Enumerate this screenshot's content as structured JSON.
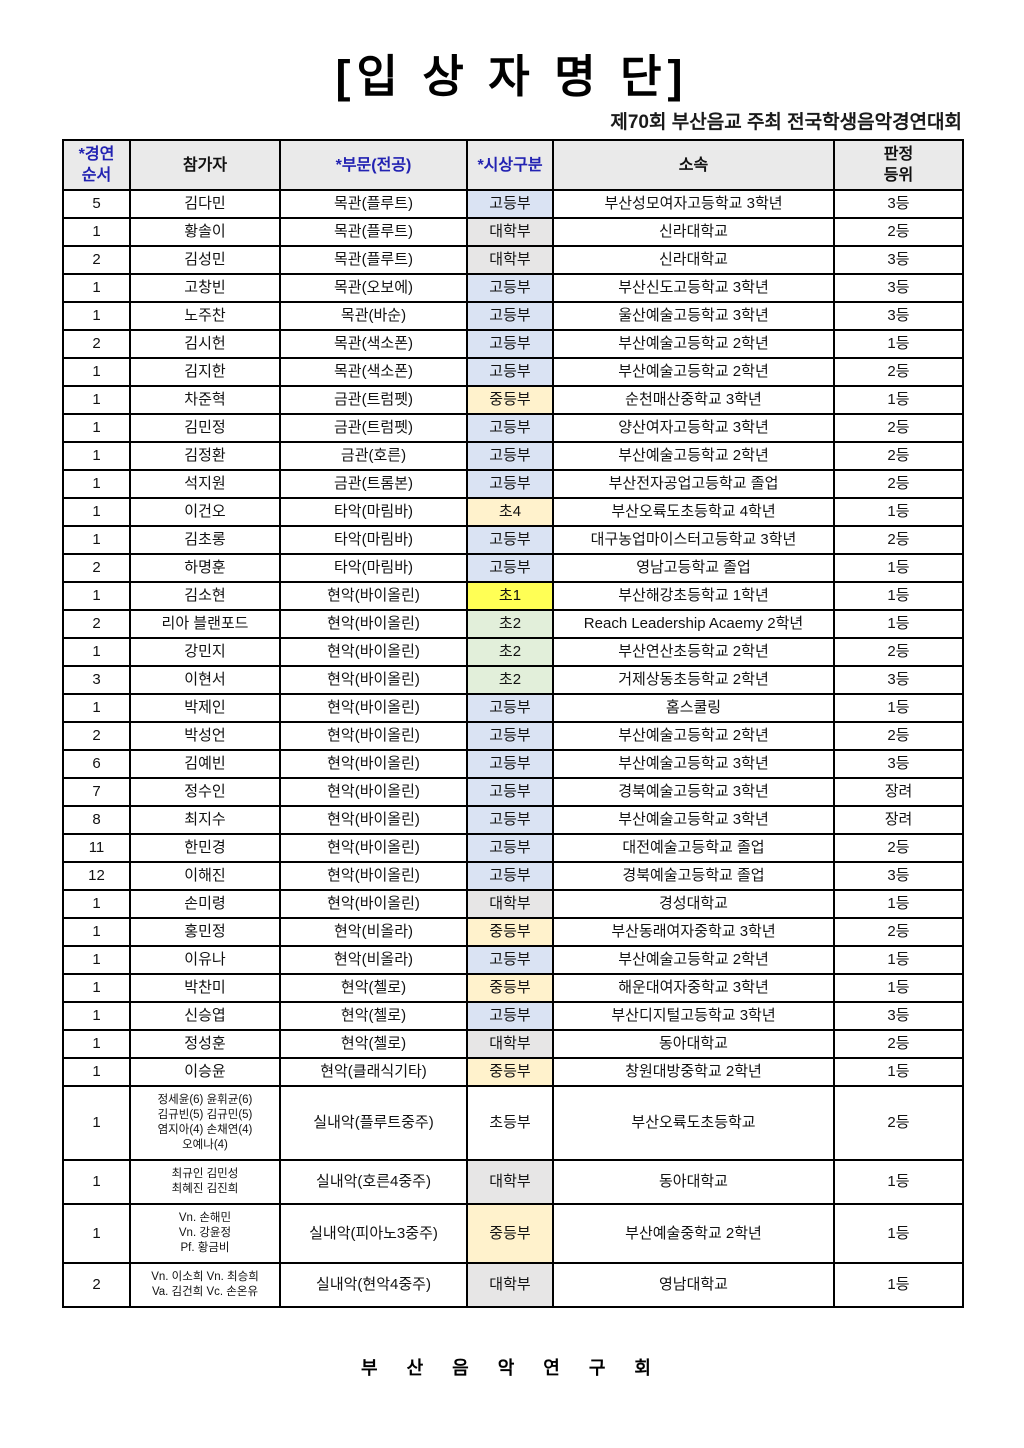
{
  "page": {
    "title": "[입 상 자 명 단]",
    "subtitle": "제70회 부산음교 주최 전국학생음악경연대회",
    "footer": "부 산 음 악 연 구 회"
  },
  "colors": {
    "header_bg": "#eaeaea",
    "header_accent_text": "#2222b2",
    "border": "#000000"
  },
  "category_colors": {
    "고등부": "#dae3f3",
    "대학부": "#e7e6e6",
    "중등부": "#fff2cc",
    "초4": "#fff2cc",
    "초1": "#ffff55",
    "초2": "#e2efda",
    "초등부": ""
  },
  "table": {
    "headers": [
      {
        "lines": [
          "*경연",
          "순서"
        ],
        "blue": true
      },
      {
        "lines": [
          "참가자"
        ],
        "blue": false
      },
      {
        "lines": [
          "*부문(전공)"
        ],
        "blue": true
      },
      {
        "lines": [
          "*시상구분"
        ],
        "blue": true
      },
      {
        "lines": [
          "소속"
        ],
        "blue": false
      },
      {
        "lines": [
          "판정",
          "등위"
        ],
        "blue": false
      }
    ],
    "rows": [
      {
        "order": "5",
        "participant": [
          "김다민"
        ],
        "division": "목관(플루트)",
        "category": "고등부",
        "affiliation": "부산성모여자고등학교 3학년",
        "rank": "3등",
        "small": false
      },
      {
        "order": "1",
        "participant": [
          "황솔이"
        ],
        "division": "목관(플루트)",
        "category": "대학부",
        "affiliation": "신라대학교",
        "rank": "2등",
        "small": false
      },
      {
        "order": "2",
        "participant": [
          "김성민"
        ],
        "division": "목관(플루트)",
        "category": "대학부",
        "affiliation": "신라대학교",
        "rank": "3등",
        "small": false
      },
      {
        "order": "1",
        "participant": [
          "고창빈"
        ],
        "division": "목관(오보에)",
        "category": "고등부",
        "affiliation": "부산신도고등학교 3학년",
        "rank": "3등",
        "small": false
      },
      {
        "order": "1",
        "participant": [
          "노주찬"
        ],
        "division": "목관(바순)",
        "category": "고등부",
        "affiliation": "울산예술고등학교 3학년",
        "rank": "3등",
        "small": false
      },
      {
        "order": "2",
        "participant": [
          "김시헌"
        ],
        "division": "목관(색소폰)",
        "category": "고등부",
        "affiliation": "부산예술고등학교 2학년",
        "rank": "1등",
        "small": false
      },
      {
        "order": "1",
        "participant": [
          "김지한"
        ],
        "division": "목관(색소폰)",
        "category": "고등부",
        "affiliation": "부산예술고등학교 2학년",
        "rank": "2등",
        "small": false
      },
      {
        "order": "1",
        "participant": [
          "차준혁"
        ],
        "division": "금관(트럼펫)",
        "category": "중등부",
        "affiliation": "순천매산중학교 3학년",
        "rank": "1등",
        "small": false
      },
      {
        "order": "1",
        "participant": [
          "김민정"
        ],
        "division": "금관(트럼펫)",
        "category": "고등부",
        "affiliation": "양산여자고등학교 3학년",
        "rank": "2등",
        "small": false
      },
      {
        "order": "1",
        "participant": [
          "김정환"
        ],
        "division": "금관(호른)",
        "category": "고등부",
        "affiliation": "부산예술고등학교 2학년",
        "rank": "2등",
        "small": false
      },
      {
        "order": "1",
        "participant": [
          "석지원"
        ],
        "division": "금관(트롬본)",
        "category": "고등부",
        "affiliation": "부산전자공업고등학교 졸업",
        "rank": "2등",
        "small": false
      },
      {
        "order": "1",
        "participant": [
          "이건오"
        ],
        "division": "타악(마림바)",
        "category": "초4",
        "affiliation": "부산오륙도초등학교 4학년",
        "rank": "1등",
        "small": false
      },
      {
        "order": "1",
        "participant": [
          "김초롱"
        ],
        "division": "타악(마림바)",
        "category": "고등부",
        "affiliation": "대구농업마이스터고등학교 3학년",
        "rank": "2등",
        "small": false
      },
      {
        "order": "2",
        "participant": [
          "하명훈"
        ],
        "division": "타악(마림바)",
        "category": "고등부",
        "affiliation": "영남고등학교 졸업",
        "rank": "1등",
        "small": false
      },
      {
        "order": "1",
        "participant": [
          "김소현"
        ],
        "division": "현악(바이올린)",
        "category": "초1",
        "affiliation": "부산해강초등학교 1학년",
        "rank": "1등",
        "small": false
      },
      {
        "order": "2",
        "participant": [
          "리아 블랜포드"
        ],
        "division": "현악(바이올린)",
        "category": "초2",
        "affiliation": "Reach Leadership Acaemy 2학년",
        "rank": "1등",
        "small": false
      },
      {
        "order": "1",
        "participant": [
          "강민지"
        ],
        "division": "현악(바이올린)",
        "category": "초2",
        "affiliation": "부산연산초등학교 2학년",
        "rank": "2등",
        "small": false
      },
      {
        "order": "3",
        "participant": [
          "이현서"
        ],
        "division": "현악(바이올린)",
        "category": "초2",
        "affiliation": "거제상동초등학교 2학년",
        "rank": "3등",
        "small": false
      },
      {
        "order": "1",
        "participant": [
          "박제인"
        ],
        "division": "현악(바이올린)",
        "category": "고등부",
        "affiliation": "홈스쿨링",
        "rank": "1등",
        "small": false
      },
      {
        "order": "2",
        "participant": [
          "박성언"
        ],
        "division": "현악(바이올린)",
        "category": "고등부",
        "affiliation": "부산예술고등학교 2학년",
        "rank": "2등",
        "small": false
      },
      {
        "order": "6",
        "participant": [
          "김예빈"
        ],
        "division": "현악(바이올린)",
        "category": "고등부",
        "affiliation": "부산예술고등학교 3학년",
        "rank": "3등",
        "small": false
      },
      {
        "order": "7",
        "participant": [
          "정수인"
        ],
        "division": "현악(바이올린)",
        "category": "고등부",
        "affiliation": "경북예술고등학교 3학년",
        "rank": "장려",
        "small": false
      },
      {
        "order": "8",
        "participant": [
          "최지수"
        ],
        "division": "현악(바이올린)",
        "category": "고등부",
        "affiliation": "부산예술고등학교 3학년",
        "rank": "장려",
        "small": false
      },
      {
        "order": "11",
        "participant": [
          "한민경"
        ],
        "division": "현악(바이올린)",
        "category": "고등부",
        "affiliation": "대전예술고등학교 졸업",
        "rank": "2등",
        "small": false
      },
      {
        "order": "12",
        "participant": [
          "이해진"
        ],
        "division": "현악(바이올린)",
        "category": "고등부",
        "affiliation": "경북예술고등학교 졸업",
        "rank": "3등",
        "small": false
      },
      {
        "order": "1",
        "participant": [
          "손미령"
        ],
        "division": "현악(바이올린)",
        "category": "대학부",
        "affiliation": "경성대학교",
        "rank": "1등",
        "small": false
      },
      {
        "order": "1",
        "participant": [
          "홍민정"
        ],
        "division": "현악(비올라)",
        "category": "중등부",
        "affiliation": "부산동래여자중학교 3학년",
        "rank": "2등",
        "small": false
      },
      {
        "order": "1",
        "participant": [
          "이유나"
        ],
        "division": "현악(비올라)",
        "category": "고등부",
        "affiliation": "부산예술고등학교 2학년",
        "rank": "1등",
        "small": false
      },
      {
        "order": "1",
        "participant": [
          "박찬미"
        ],
        "division": "현악(첼로)",
        "category": "중등부",
        "affiliation": "해운대여자중학교 3학년",
        "rank": "1등",
        "small": false
      },
      {
        "order": "1",
        "participant": [
          "신승엽"
        ],
        "division": "현악(첼로)",
        "category": "고등부",
        "affiliation": "부산디지털고등학교 3학년",
        "rank": "3등",
        "small": false
      },
      {
        "order": "1",
        "participant": [
          "정성훈"
        ],
        "division": "현악(첼로)",
        "category": "대학부",
        "affiliation": "동아대학교",
        "rank": "2등",
        "small": false
      },
      {
        "order": "1",
        "participant": [
          "이승윤"
        ],
        "division": "현악(클래식기타)",
        "category": "중등부",
        "affiliation": "창원대방중학교 2학년",
        "rank": "1등",
        "small": false
      },
      {
        "order": "1",
        "participant": [
          "정세윤(6) 윤휘균(6)",
          "김규빈(5) 김규민(5)",
          "염지아(4) 손채연(4)",
          "오예나(4)"
        ],
        "division": "실내악(플루트중주)",
        "category": "초등부",
        "affiliation": "부산오륙도초등학교",
        "rank": "2등",
        "small": true
      },
      {
        "order": "1",
        "participant": [
          "최규인 김민성",
          "최혜진 김진희"
        ],
        "division": "실내악(호른4중주)",
        "category": "대학부",
        "affiliation": "동아대학교",
        "rank": "1등",
        "small": true
      },
      {
        "order": "1",
        "participant": [
          "Vn. 손해민",
          "Vn. 강윤정",
          "Pf. 황금비"
        ],
        "division": "실내악(피아노3중주)",
        "category": "중등부",
        "affiliation": "부산예술중학교 2학년",
        "rank": "1등",
        "small": true
      },
      {
        "order": "2",
        "participant": [
          "Vn. 이소희 Vn. 최승희",
          "Va. 김건희 Vc. 손온유"
        ],
        "division": "실내악(현악4중주)",
        "category": "대학부",
        "affiliation": "영남대학교",
        "rank": "1등",
        "small": true
      }
    ]
  }
}
